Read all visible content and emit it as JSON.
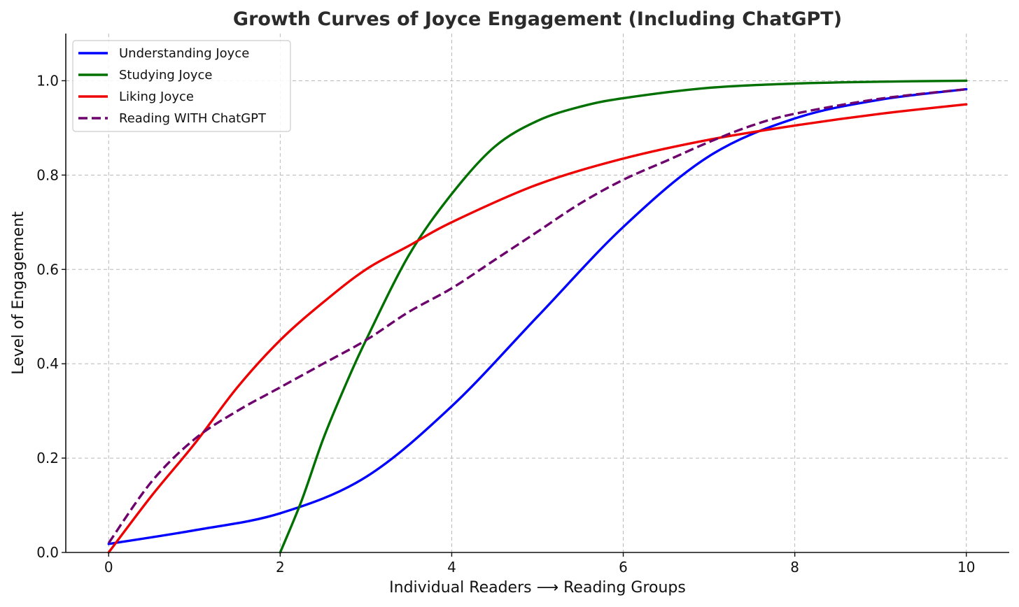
{
  "chart_data": {
    "type": "line",
    "title": "Growth Curves of Joyce Engagement (Including ChatGPT)",
    "xlabel": "Individual Readers ⟶ Reading Groups",
    "ylabel": "Level of Engagement",
    "xlim": [
      -0.5,
      10.5
    ],
    "ylim": [
      0.0,
      1.1
    ],
    "xticks": [
      0,
      2,
      4,
      6,
      8,
      10
    ],
    "xtick_labels": [
      "0",
      "2",
      "4",
      "6",
      "8",
      "10"
    ],
    "yticks": [
      0.0,
      0.2,
      0.4,
      0.6,
      0.8,
      1.0
    ],
    "ytick_labels": [
      "0.0",
      "0.2",
      "0.4",
      "0.6",
      "0.8",
      "1.0"
    ],
    "grid": true,
    "legend_position": "top-left",
    "series": [
      {
        "name": "Understanding Joyce",
        "color": "#0000ff",
        "dash": "solid",
        "x": [
          0,
          1,
          2,
          3,
          4,
          5,
          6,
          7,
          8,
          9,
          10
        ],
        "y": [
          0.018,
          0.047,
          0.083,
          0.16,
          0.31,
          0.5,
          0.69,
          0.84,
          0.92,
          0.96,
          0.982
        ]
      },
      {
        "name": "Studying Joyce",
        "color": "#007000",
        "dash": "solid",
        "x": [
          2.0,
          2.25,
          2.5,
          2.75,
          3.0,
          3.5,
          4.0,
          4.5,
          5.0,
          5.5,
          6.0,
          7.0,
          8.0,
          9.0,
          10.0
        ],
        "y": [
          0.0,
          0.11,
          0.24,
          0.35,
          0.45,
          0.63,
          0.76,
          0.86,
          0.915,
          0.945,
          0.963,
          0.985,
          0.994,
          0.998,
          1.0
        ]
      },
      {
        "name": "Liking Joyce",
        "color": "#ee0000",
        "dash": "solid",
        "x": [
          0,
          0.5,
          1,
          1.5,
          2,
          2.5,
          3,
          3.5,
          4,
          5,
          6,
          7,
          8,
          9,
          10
        ],
        "y": [
          0.0,
          0.12,
          0.23,
          0.35,
          0.45,
          0.53,
          0.6,
          0.65,
          0.7,
          0.78,
          0.835,
          0.875,
          0.905,
          0.93,
          0.95
        ]
      },
      {
        "name": "Reading WITH ChatGPT",
        "color": "#6d006d",
        "dash": "dashed",
        "x": [
          0,
          0.5,
          1,
          1.5,
          2,
          2.5,
          3,
          3.5,
          4,
          4.5,
          5,
          5.5,
          6,
          6.5,
          7,
          7.5,
          8,
          9,
          10
        ],
        "y": [
          0.02,
          0.15,
          0.24,
          0.3,
          0.35,
          0.4,
          0.45,
          0.51,
          0.56,
          0.62,
          0.68,
          0.74,
          0.79,
          0.83,
          0.87,
          0.905,
          0.93,
          0.962,
          0.982
        ]
      }
    ]
  }
}
